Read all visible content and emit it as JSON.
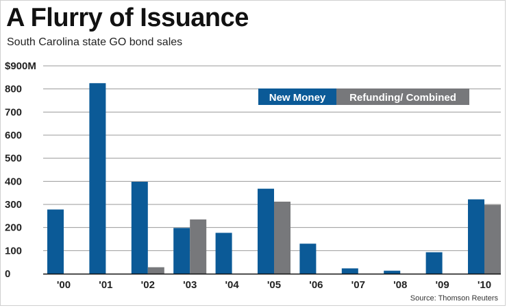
{
  "title": "A Flurry of Issuance",
  "subtitle": "South Carolina state GO bond sales",
  "source": "Source: Thomson Reuters",
  "colors": {
    "new_money": "#0b5a97",
    "refunding": "#77787b",
    "grid": "#9a9a9a",
    "axis": "#111111"
  },
  "chart_data": {
    "type": "bar",
    "title": "A Flurry of Issuance",
    "xlabel": "",
    "ylabel": "",
    "ylim": [
      0,
      900
    ],
    "yticks": [
      0,
      100,
      200,
      300,
      400,
      500,
      600,
      700,
      800,
      900
    ],
    "ytick_labels": [
      "0",
      "100",
      "200",
      "300",
      "400",
      "500",
      "600",
      "700",
      "800",
      "$900M"
    ],
    "grid": true,
    "legend_position": "top-right",
    "categories": [
      "'00",
      "'01",
      "'02",
      "'03",
      "'04",
      "'05",
      "'06",
      "'07",
      "'08",
      "'09",
      "'10"
    ],
    "series": [
      {
        "name": "New Money",
        "values": [
          278,
          825,
          398,
          198,
          177,
          368,
          130,
          23,
          13,
          93,
          322
        ]
      },
      {
        "name": "Refunding/ Combined",
        "values": [
          0,
          0,
          28,
          235,
          0,
          312,
          0,
          0,
          0,
          0,
          298
        ]
      }
    ]
  }
}
